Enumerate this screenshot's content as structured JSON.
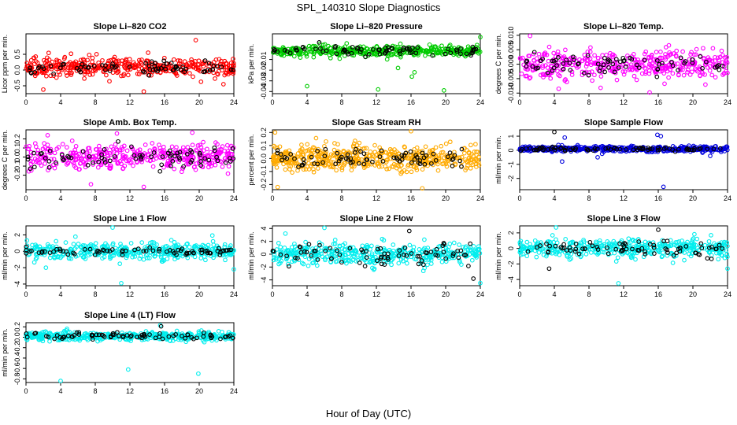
{
  "figure": {
    "title": "SPL_140310  Slope Diagnostics",
    "xlabel": "Hour of Day (UTC)"
  },
  "chart_data": [
    {
      "type": "scatter",
      "title": "Slope Li–820 CO2",
      "ylabel": "Licor ppm per min.",
      "xlim": [
        0,
        24
      ],
      "ylim": [
        -0.75,
        1.15
      ],
      "xticks": [
        0,
        4,
        8,
        12,
        16,
        20,
        24
      ],
      "yticks": [
        -0.5,
        0.0,
        0.5
      ],
      "ytick_labels": [
        "-0.5",
        "0.0",
        "0.5"
      ],
      "series": [
        {
          "color": "#ff0000",
          "center": 0.1,
          "spread": 0.18,
          "n": 420,
          "outliers": [
            [
              2.0,
              -0.62
            ],
            [
              5.2,
              0.52
            ],
            [
              13.6,
              -0.68
            ],
            [
              14.1,
              0.55
            ],
            [
              19.6,
              0.95
            ],
            [
              22.8,
              -0.45
            ],
            [
              7.3,
              0.48
            ]
          ]
        },
        {
          "color": "#000000",
          "center": 0.08,
          "spread": 0.12,
          "n": 75,
          "outliers": []
        }
      ]
    },
    {
      "type": "scatter",
      "title": "Slope Li–820 Pressure",
      "ylabel": "kPa per min.",
      "xlim": [
        0,
        24
      ],
      "ylim": [
        -0.042,
        0.014
      ],
      "xticks": [
        0,
        4,
        8,
        12,
        16,
        20,
        24
      ],
      "yticks": [
        -0.04,
        -0.03,
        -0.02,
        -0.01
      ],
      "ytick_labels": [
        "-0.04",
        "-0.03",
        "-0.02",
        "-0.01"
      ],
      "series": [
        {
          "color": "#00cc00",
          "center": -0.002,
          "spread": 0.0035,
          "n": 420,
          "outliers": [
            [
              4.0,
              -0.035
            ],
            [
              12.2,
              -0.038
            ],
            [
              16.1,
              -0.026
            ],
            [
              16.4,
              -0.022
            ],
            [
              19.8,
              -0.039
            ],
            [
              24.0,
              0.011
            ],
            [
              14.5,
              -0.018
            ]
          ]
        },
        {
          "color": "#000000",
          "center": -0.002,
          "spread": 0.003,
          "n": 75,
          "outliers": [
            [
              5.4,
              0.006
            ]
          ]
        }
      ]
    },
    {
      "type": "scatter",
      "title": "Slope Li–820 Temp.",
      "ylabel": "degrees C per min.",
      "xlim": [
        0,
        24
      ],
      "ylim": [
        -0.0102,
        0.0105
      ],
      "xticks": [
        0,
        4,
        8,
        12,
        16,
        20,
        24
      ],
      "yticks": [
        -0.01,
        -0.005,
        0.0,
        0.005,
        0.01
      ],
      "ytick_labels": [
        "-0.010",
        "-0.005",
        "0.000",
        "0.005",
        "0.010"
      ],
      "series": [
        {
          "color": "#ff00ff",
          "center": 0.0,
          "spread": 0.0033,
          "n": 420,
          "outliers": [
            [
              1.2,
              0.0098
            ],
            [
              15.0,
              -0.0098
            ],
            [
              4.5,
              -0.0085
            ]
          ]
        },
        {
          "color": "#000000",
          "center": 0.0,
          "spread": 0.0025,
          "n": 75,
          "outliers": []
        }
      ]
    },
    {
      "type": "scatter",
      "title": "Slope Amb. Box Temp.",
      "ylabel": "degrees C per min.",
      "xlim": [
        0,
        24
      ],
      "ylim": [
        -0.36,
        0.3
      ],
      "xticks": [
        0,
        4,
        8,
        12,
        16,
        20,
        24
      ],
      "yticks": [
        -0.2,
        -0.1,
        0.0,
        0.1,
        0.2
      ],
      "ytick_labels": [
        "-0.2",
        "-0.1",
        "0.0",
        "0.1",
        "0.2"
      ],
      "series": [
        {
          "color": "#ff00ff",
          "center": 0.0,
          "spread": 0.09,
          "n": 420,
          "outliers": [
            [
              7.5,
              -0.3
            ],
            [
              13.6,
              -0.33
            ],
            [
              19.2,
              0.27
            ],
            [
              10.5,
              0.26
            ],
            [
              2.5,
              0.24
            ]
          ]
        },
        {
          "color": "#000000",
          "center": 0.0,
          "spread": 0.07,
          "n": 75,
          "outliers": []
        }
      ]
    },
    {
      "type": "scatter",
      "title": "Slope Gas Stream RH",
      "ylabel": "percent per min.",
      "xlim": [
        0,
        24
      ],
      "ylim": [
        -0.24,
        0.22
      ],
      "xticks": [
        0,
        4,
        8,
        12,
        16,
        20,
        24
      ],
      "yticks": [
        -0.2,
        -0.1,
        0.0,
        0.1,
        0.2
      ],
      "ytick_labels": [
        "-0.2",
        "-0.1",
        "0.0",
        "0.1",
        "0.2"
      ],
      "series": [
        {
          "color": "#ffaa00",
          "center": 0.0,
          "spread": 0.065,
          "n": 520,
          "outliers": [
            [
              0.3,
              0.2
            ],
            [
              0.6,
              -0.22
            ],
            [
              16.0,
              0.21
            ],
            [
              17.3,
              -0.23
            ]
          ]
        },
        {
          "color": "#000000",
          "center": 0.0,
          "spread": 0.05,
          "n": 75,
          "outliers": []
        }
      ]
    },
    {
      "type": "scatter",
      "title": "Slope Sample Flow",
      "ylabel": "ml/min per min.",
      "xlim": [
        0,
        24
      ],
      "ylim": [
        -2.8,
        1.45
      ],
      "xticks": [
        0,
        4,
        8,
        12,
        16,
        20,
        24
      ],
      "yticks": [
        -2,
        -1,
        0,
        1
      ],
      "ytick_labels": [
        "-2",
        "-1",
        "0",
        "1"
      ],
      "series": [
        {
          "color": "#0000dd",
          "center": 0.1,
          "spread": 0.13,
          "n": 420,
          "outliers": [
            [
              4.9,
              -0.8
            ],
            [
              5.2,
              0.9
            ],
            [
              15.9,
              1.1
            ],
            [
              16.3,
              1.0
            ],
            [
              16.6,
              -2.6
            ],
            [
              9.0,
              -0.5
            ],
            [
              22.0,
              -0.4
            ]
          ]
        },
        {
          "color": "#000000",
          "center": 0.1,
          "spread": 0.1,
          "n": 75,
          "outliers": [
            [
              4.0,
              1.3
            ]
          ]
        }
      ]
    },
    {
      "type": "scatter",
      "title": "Slope Line 1 Flow",
      "ylabel": "ml/min per min.",
      "xlim": [
        0,
        24
      ],
      "ylim": [
        -4.2,
        3.1
      ],
      "xticks": [
        0,
        4,
        8,
        12,
        16,
        20,
        24
      ],
      "yticks": [
        -4,
        -2,
        0,
        2
      ],
      "ytick_labels": [
        "-4",
        "-2",
        "0",
        "2"
      ],
      "series": [
        {
          "color": "#00eeee",
          "center": 0.0,
          "spread": 0.65,
          "n": 420,
          "outliers": [
            [
              11.0,
              -3.9
            ],
            [
              10.0,
              2.9
            ],
            [
              24.0,
              -2.2
            ],
            [
              2.3,
              -2.0
            ]
          ]
        },
        {
          "color": "#000000",
          "center": 0.0,
          "spread": 0.25,
          "n": 75,
          "outliers": []
        }
      ]
    },
    {
      "type": "scatter",
      "title": "Slope Line 2 Flow",
      "ylabel": "ml/min per min.",
      "xlim": [
        0,
        24
      ],
      "ylim": [
        -4.9,
        4.4
      ],
      "xticks": [
        0,
        4,
        8,
        12,
        16,
        20,
        24
      ],
      "yticks": [
        -4,
        -2,
        0,
        2,
        4
      ],
      "ytick_labels": [
        "-4",
        "-2",
        "0",
        "2",
        "4"
      ],
      "series": [
        {
          "color": "#00eeee",
          "center": 0.0,
          "spread": 1.05,
          "n": 420,
          "outliers": [
            [
              6.0,
              4.1
            ],
            [
              24.0,
              -4.5
            ],
            [
              1.5,
              3.2
            ]
          ]
        },
        {
          "color": "#000000",
          "center": 0.0,
          "spread": 1.3,
          "n": 75,
          "outliers": [
            [
              15.8,
              3.6
            ],
            [
              23.2,
              -3.8
            ]
          ]
        }
      ]
    },
    {
      "type": "scatter",
      "title": "Slope Line 3 Flow",
      "ylabel": "ml/min per min.",
      "xlim": [
        0,
        24
      ],
      "ylim": [
        -4.8,
        2.9
      ],
      "xticks": [
        0,
        4,
        8,
        12,
        16,
        20,
        24
      ],
      "yticks": [
        -4,
        -2,
        0,
        2
      ],
      "ytick_labels": [
        "-4",
        "-2",
        "0",
        "2"
      ],
      "series": [
        {
          "color": "#00eeee",
          "center": 0.0,
          "spread": 0.8,
          "n": 420,
          "outliers": [
            [
              11.4,
              -4.5
            ],
            [
              4.2,
              2.7
            ],
            [
              24.0,
              -2.6
            ]
          ]
        },
        {
          "color": "#000000",
          "center": 0.0,
          "spread": 0.7,
          "n": 75,
          "outliers": [
            [
              16.0,
              2.4
            ],
            [
              3.4,
              -2.6
            ]
          ]
        }
      ]
    },
    {
      "type": "scatter",
      "title": "Slope Line 4 (LT) Flow",
      "ylabel": "ml/min per min.",
      "xlim": [
        0,
        24
      ],
      "ylim": [
        -0.87,
        0.28
      ],
      "xticks": [
        0,
        4,
        8,
        12,
        16,
        20,
        24
      ],
      "yticks": [
        -0.8,
        -0.6,
        -0.4,
        -0.2,
        0.0,
        0.2
      ],
      "ytick_labels": [
        "-0.8",
        "-0.6",
        "-0.4",
        "-0.2",
        "0.0",
        "0.2"
      ],
      "series": [
        {
          "color": "#00eeee",
          "center": 0.02,
          "spread": 0.055,
          "n": 420,
          "outliers": [
            [
              4.0,
              -0.84
            ],
            [
              11.8,
              -0.62
            ],
            [
              19.9,
              -0.7
            ],
            [
              15.5,
              0.23
            ]
          ]
        },
        {
          "color": "#000000",
          "center": 0.02,
          "spread": 0.045,
          "n": 75,
          "outliers": [
            [
              15.6,
              0.21
            ]
          ]
        }
      ]
    }
  ]
}
